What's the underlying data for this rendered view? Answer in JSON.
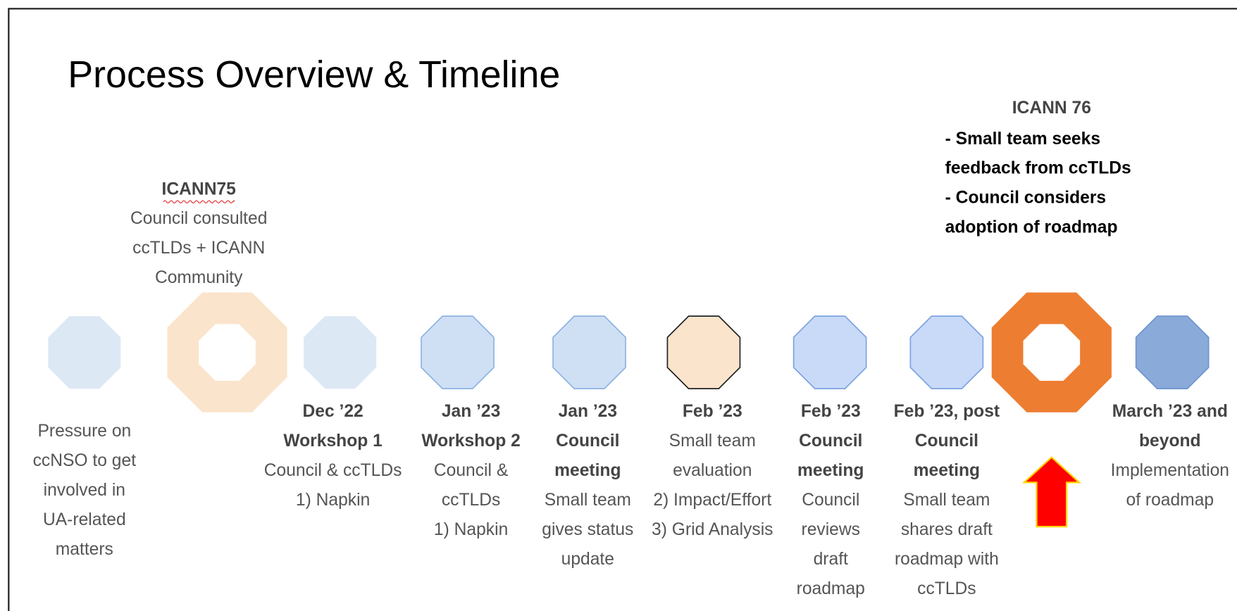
{
  "title": "Process Overview & Timeline",
  "milestones": [
    {
      "label": "ICANN75",
      "lines": [
        "Council consulted",
        "ccTLDs + ICANN",
        "Community"
      ]
    },
    {
      "label": "ICANN 76",
      "lines": [
        "- Small team seeks",
        "feedback from ccTLDs",
        "- Council considers",
        "adoption of roadmap"
      ]
    }
  ],
  "steps": [
    {
      "heading": [],
      "body": [
        "Pressure on",
        "ccNSO to get",
        "involved in",
        "UA-related",
        "matters"
      ]
    },
    {
      "heading": [
        "Dec ’22",
        "Workshop 1"
      ],
      "body": [
        "Council & ccTLDs",
        "1) Napkin"
      ]
    },
    {
      "heading": [
        "Jan ’23",
        "Workshop 2"
      ],
      "body": [
        "Council &",
        "ccTLDs",
        "1) Napkin"
      ]
    },
    {
      "heading": [
        "Jan ’23",
        "Council",
        "meeting"
      ],
      "body": [
        "Small team",
        "gives status",
        "update"
      ]
    },
    {
      "heading": [
        "Feb ’23"
      ],
      "body": [
        "Small team",
        "evaluation",
        "2) Impact/Effort",
        "3) Grid Analysis"
      ]
    },
    {
      "heading": [
        "Feb ’23",
        "Council",
        "meeting"
      ],
      "body": [
        "Council",
        "reviews",
        "draft",
        "roadmap"
      ]
    },
    {
      "heading": [
        "Feb ’23, post",
        "Council",
        "meeting"
      ],
      "body": [
        "Small team",
        "shares draft",
        "roadmap with",
        "ccTLDs"
      ]
    },
    {
      "heading": [
        "March ’23 and",
        "beyond"
      ],
      "body": [
        "Implementation",
        "of roadmap"
      ]
    }
  ]
}
